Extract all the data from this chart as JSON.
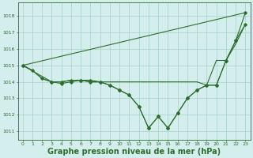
{
  "bg_color": "#d4eeed",
  "grid_color": "#aed4d0",
  "line_color": "#2d6e2d",
  "xlabel": "Graphe pression niveau de la mer (hPa)",
  "xlabel_fontsize": 7.0,
  "xlim": [
    -0.5,
    23.5
  ],
  "ylim": [
    1010.5,
    1018.8
  ],
  "yticks": [
    1011,
    1012,
    1013,
    1014,
    1015,
    1016,
    1017,
    1018
  ],
  "xticks": [
    0,
    1,
    2,
    3,
    4,
    5,
    6,
    7,
    8,
    9,
    10,
    11,
    12,
    13,
    14,
    15,
    16,
    17,
    18,
    19,
    20,
    21,
    22,
    23
  ],
  "line1_x": [
    0,
    23
  ],
  "line1_y": [
    1015.0,
    1018.2
  ],
  "line2_x": [
    0,
    3,
    4,
    5,
    6,
    7,
    8,
    9,
    10,
    11,
    12,
    13,
    14,
    15,
    16,
    17,
    18,
    19,
    20,
    21,
    22,
    23
  ],
  "line2_y": [
    1015.0,
    1014.0,
    1013.9,
    1014.0,
    1014.1,
    1014.1,
    1014.0,
    1013.8,
    1013.5,
    1013.2,
    1012.5,
    1011.2,
    1011.9,
    1011.2,
    1012.1,
    1013.0,
    1013.5,
    1013.8,
    1013.8,
    1015.3,
    1016.5,
    1017.5
  ],
  "line3_x": [
    0,
    1,
    2,
    3,
    4,
    5,
    6,
    7,
    8,
    9,
    10,
    11,
    12,
    13,
    14,
    15,
    16,
    17,
    18,
    19,
    20,
    21,
    22,
    23
  ],
  "line3_y": [
    1015.0,
    1014.7,
    1014.2,
    1014.0,
    1014.0,
    1014.1,
    1014.1,
    1014.0,
    1014.0,
    1013.8,
    1013.5,
    1013.2,
    1012.5,
    1011.2,
    1011.9,
    1011.2,
    1012.1,
    1013.0,
    1013.5,
    1013.8,
    1013.8,
    1015.3,
    1016.5,
    1018.2
  ],
  "line4_x": [
    0,
    1,
    2,
    3,
    4,
    5,
    6,
    7,
    8,
    9,
    10,
    11,
    12,
    13,
    14,
    15,
    16,
    17,
    18,
    19,
    20,
    21,
    22,
    23
  ],
  "line4_y": [
    1015.0,
    1014.7,
    1014.2,
    1014.0,
    1014.0,
    1014.1,
    1014.1,
    1014.0,
    1014.0,
    1014.0,
    1014.0,
    1014.0,
    1014.0,
    1014.0,
    1014.0,
    1014.0,
    1014.0,
    1014.0,
    1014.0,
    1013.8,
    1015.3,
    1015.3,
    1016.3,
    1017.5
  ]
}
